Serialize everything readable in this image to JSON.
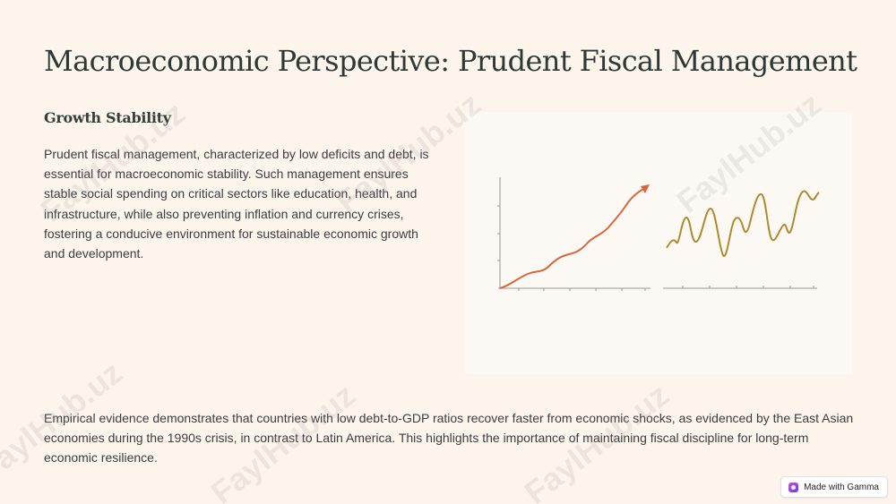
{
  "slide": {
    "title": "Macroeconomic Perspective: Prudent Fiscal Management",
    "section_heading": "Growth Stability",
    "paragraph_1": "Prudent fiscal management, characterized by low deficits and debt, is essential for macroeconomic stability. Such management ensures stable social spending on critical sectors like education, health, and infrastructure, while also preventing inflation and currency crises, fostering a conducive environment for sustainable economic growth and development.",
    "paragraph_2": "Empirical evidence demonstrates that countries with low debt-to-GDP ratios recover faster from economic shocks, as evidenced by the East Asian economies during the 1990s crisis, in contrast to Latin America. This highlights the importance of maintaining fiscal discipline for long-term economic resilience."
  },
  "illustration": {
    "icon": "growth-vs-volatility-chart-illustration",
    "colors": {
      "growth_line": "#d9663a",
      "volatile_line": "#b08a2e",
      "axis": "#9b9590"
    }
  },
  "badge": {
    "label": "Made with Gamma",
    "icon": "gamma-logo-icon"
  },
  "watermark": {
    "text": "FaylHub.uz"
  },
  "theme": {
    "background": "#fdf5ec",
    "title_color": "#2b3a36",
    "body_color": "#3a3d42"
  }
}
